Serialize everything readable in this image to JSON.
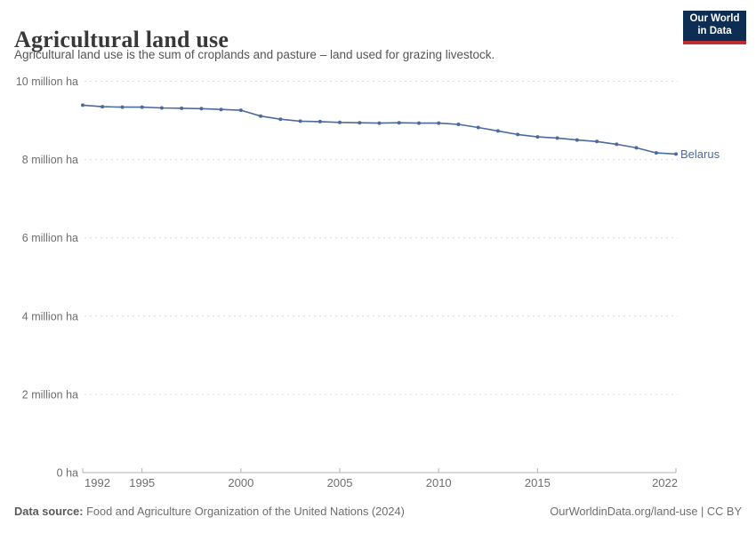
{
  "header": {
    "title": "Agricultural land use",
    "logo": {
      "line1": "Our World",
      "line2": "in Data",
      "bg_color": "#0d2d52",
      "bar_color": "#be2d32"
    }
  },
  "subtitle": "Agricultural land use is the sum of croplands and pasture – land used for grazing livestock.",
  "chart_data": {
    "type": "line",
    "title": "Agricultural land use",
    "subtitle": "Agricultural land use is the sum of croplands and pasture – land used for grazing livestock.",
    "unit": "million ha",
    "xlim": [
      1992,
      2022
    ],
    "ylim": [
      0,
      10
    ],
    "grid": "dashed horizontal",
    "legend_position": "end-of-line label",
    "x_ticks": [
      1992,
      1995,
      2000,
      2005,
      2010,
      2015,
      2022
    ],
    "y_ticks": [
      {
        "value": 0,
        "label": "0 ha"
      },
      {
        "value": 2,
        "label": "2 million ha"
      },
      {
        "value": 4,
        "label": "4 million ha"
      },
      {
        "value": 6,
        "label": "6 million ha"
      },
      {
        "value": 8,
        "label": "8 million ha"
      },
      {
        "value": 10,
        "label": "10 million ha"
      }
    ],
    "series": [
      {
        "name": "Belarus",
        "color": "#4C6A9C",
        "x": [
          1992,
          1993,
          1994,
          1995,
          1996,
          1997,
          1998,
          1999,
          2000,
          2001,
          2002,
          2003,
          2004,
          2005,
          2006,
          2007,
          2008,
          2009,
          2010,
          2011,
          2012,
          2013,
          2014,
          2015,
          2016,
          2017,
          2018,
          2019,
          2020,
          2021,
          2022
        ],
        "values": [
          9.39,
          9.35,
          9.34,
          9.34,
          9.32,
          9.31,
          9.3,
          9.28,
          9.26,
          9.11,
          9.03,
          8.98,
          8.97,
          8.95,
          8.94,
          8.93,
          8.94,
          8.93,
          8.93,
          8.9,
          8.82,
          8.73,
          8.64,
          8.58,
          8.55,
          8.5,
          8.46,
          8.39,
          8.3,
          8.17,
          8.14
        ]
      }
    ],
    "axis_color": "#b0b0b0",
    "gridline_color": "#dcdcdc",
    "tick_label_color": "#6e6e6e"
  },
  "footer": {
    "datasource_label": "Data source:",
    "datasource_text": " Food and Agriculture Organization of the United Nations (2024)",
    "right_text": "OurWorldinData.org/land-use | CC BY"
  }
}
